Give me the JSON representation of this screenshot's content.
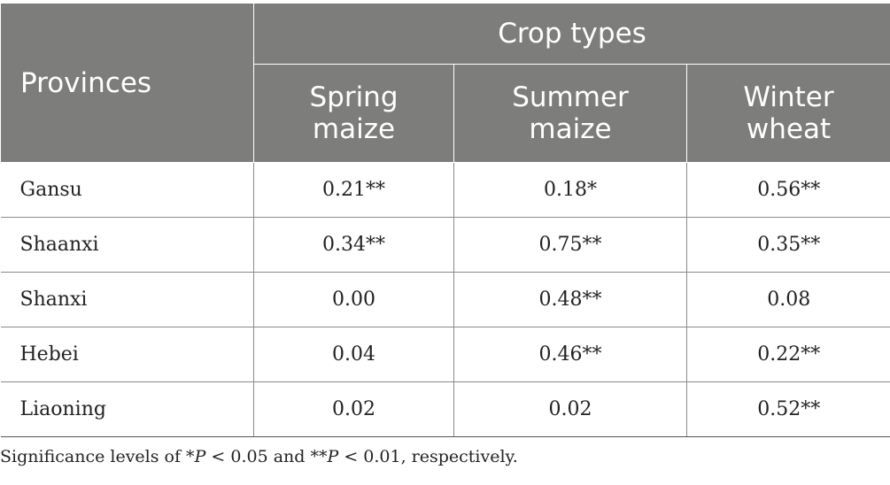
{
  "table": {
    "header": {
      "row_label": "Provinces",
      "group_label": "Crop types",
      "columns": [
        {
          "line1": "Spring",
          "line2": "maize"
        },
        {
          "line1": "Summer",
          "line2": "maize"
        },
        {
          "line1": "Winter",
          "line2": "wheat"
        }
      ]
    },
    "rows": [
      {
        "province": "Gansu",
        "values": [
          "0.21**",
          "0.18*",
          "0.56**"
        ]
      },
      {
        "province": "Shaanxi",
        "values": [
          "0.34**",
          "0.75**",
          "0.35**"
        ]
      },
      {
        "province": "Shanxi",
        "values": [
          "0.00",
          "0.48**",
          "0.08"
        ]
      },
      {
        "province": "Hebei",
        "values": [
          "0.04",
          "0.46**",
          "0.22**"
        ]
      },
      {
        "province": "Liaoning",
        "values": [
          "0.02",
          "0.02",
          "0.52**"
        ]
      }
    ]
  },
  "footnote": {
    "prefix": "Significance levels of *",
    "p1": "P",
    "mid": " < 0.05 and **",
    "p2": "P",
    "suffix": " < 0.01, respectively."
  }
}
